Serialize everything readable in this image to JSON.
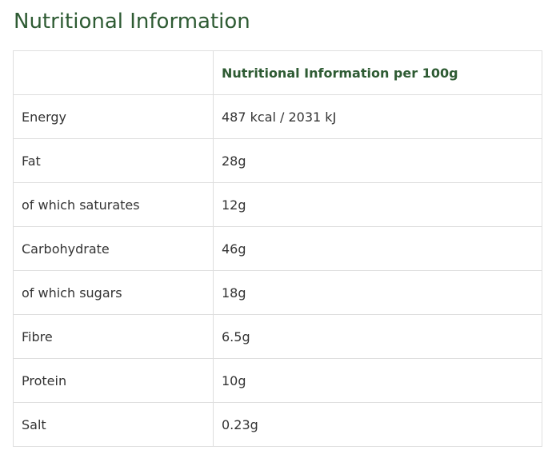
{
  "page": {
    "title": "Nutritional Information"
  },
  "table": {
    "header": {
      "label": "",
      "value": "Nutritional Information per 100g"
    },
    "rows": [
      {
        "label": "Energy",
        "value": "487 kcal / 2031 kJ"
      },
      {
        "label": "Fat",
        "value": "28g"
      },
      {
        "label": "of which saturates",
        "value": "12g"
      },
      {
        "label": "Carbohydrate",
        "value": "46g"
      },
      {
        "label": "of which sugars",
        "value": "18g"
      },
      {
        "label": "Fibre",
        "value": "6.5g"
      },
      {
        "label": "Protein",
        "value": "10g"
      },
      {
        "label": "Salt",
        "value": "0.23g"
      }
    ]
  },
  "colors": {
    "accent_green": "#2e5b33",
    "text": "#333333",
    "border": "#dedede"
  }
}
